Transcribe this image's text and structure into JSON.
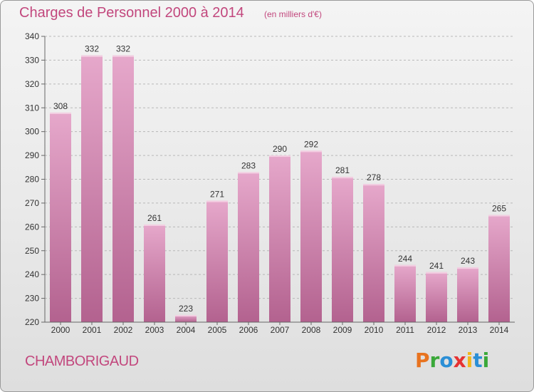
{
  "header": {
    "title": "Charges de Personnel 2000 à 2014",
    "subtitle": "(en milliers d'€)"
  },
  "footer": {
    "commune": "CHAMBORIGAUD",
    "brand_letters": [
      "P",
      "r",
      "o",
      "x",
      "i",
      "t",
      "i"
    ],
    "brand_colors": [
      "#e8731f",
      "#3aa839",
      "#2b8fd6",
      "#e63232",
      "#f2b71c",
      "#2b8fd6",
      "#3aa839"
    ]
  },
  "colors": {
    "bar_top": "#e6a8cb",
    "bar_bottom": "#b3628f",
    "grid": "#b8b8b8",
    "axis": "#666666"
  },
  "chart_data": {
    "type": "bar",
    "title": "Charges de Personnel 2000 à 2014",
    "subtitle": "(en milliers d'€)",
    "categories": [
      "2000",
      "2001",
      "2002",
      "2003",
      "2004",
      "2005",
      "2006",
      "2007",
      "2008",
      "2009",
      "2010",
      "2011",
      "2012",
      "2013",
      "2014"
    ],
    "values": [
      308,
      332,
      332,
      261,
      223,
      271,
      283,
      290,
      292,
      281,
      278,
      244,
      241,
      243,
      265
    ],
    "ylim": [
      220,
      340
    ],
    "yticks": [
      220,
      230,
      240,
      250,
      260,
      270,
      280,
      290,
      300,
      310,
      320,
      330,
      340
    ],
    "grid": "horizontal, dashed",
    "legend": "none"
  }
}
